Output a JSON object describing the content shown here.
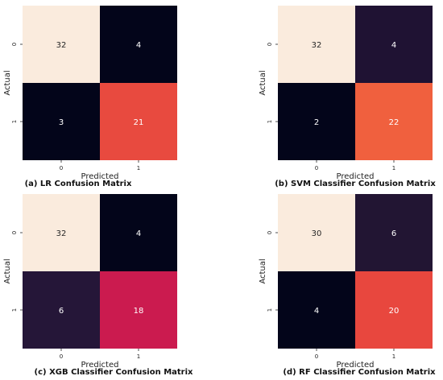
{
  "chart_data": [
    {
      "type": "heatmap",
      "caption": "(a) LR Confusion Matrix",
      "xlabel": "Predicted",
      "ylabel": "Actual",
      "x_categories": [
        "0",
        "1"
      ],
      "y_categories": [
        "0",
        "1"
      ],
      "values": [
        [
          32,
          4
        ],
        [
          3,
          21
        ]
      ],
      "colors": [
        [
          "#faebdd",
          "#03051a"
        ],
        [
          "#03051a",
          "#e84a3f"
        ]
      ],
      "text_colors": [
        [
          "#262626",
          "#ffffff"
        ],
        [
          "#ffffff",
          "#ffffff"
        ]
      ]
    },
    {
      "type": "heatmap",
      "caption": "(b) SVM Classifier Confusion Matrix",
      "xlabel": "Predicted",
      "ylabel": "Actual",
      "x_categories": [
        "0",
        "1"
      ],
      "y_categories": [
        "0",
        "1"
      ],
      "values": [
        [
          32,
          4
        ],
        [
          2,
          22
        ]
      ],
      "colors": [
        [
          "#faebdd",
          "#1f1233"
        ],
        [
          "#03051a",
          "#f0603e"
        ]
      ],
      "text_colors": [
        [
          "#262626",
          "#ffffff"
        ],
        [
          "#ffffff",
          "#ffffff"
        ]
      ]
    },
    {
      "type": "heatmap",
      "caption": "(c) XGB Classifier Confusion Matrix",
      "xlabel": "Predicted",
      "ylabel": "Actual",
      "x_categories": [
        "0",
        "1"
      ],
      "y_categories": [
        "0",
        "1"
      ],
      "values": [
        [
          32,
          4
        ],
        [
          6,
          18
        ]
      ],
      "colors": [
        [
          "#faebdd",
          "#03051a"
        ],
        [
          "#251638",
          "#cb1b4f"
        ]
      ],
      "text_colors": [
        [
          "#262626",
          "#ffffff"
        ],
        [
          "#ffffff",
          "#ffffff"
        ]
      ]
    },
    {
      "type": "heatmap",
      "caption": "(d) RF Classifier Confusion Matrix",
      "xlabel": "Predicted",
      "ylabel": "Actual",
      "x_categories": [
        "0",
        "1"
      ],
      "y_categories": [
        "0",
        "1"
      ],
      "values": [
        [
          30,
          6
        ],
        [
          4,
          20
        ]
      ],
      "colors": [
        [
          "#faebdd",
          "#221533"
        ],
        [
          "#03051a",
          "#e8473e"
        ]
      ],
      "text_colors": [
        [
          "#262626",
          "#ffffff"
        ],
        [
          "#ffffff",
          "#ffffff"
        ]
      ]
    }
  ]
}
